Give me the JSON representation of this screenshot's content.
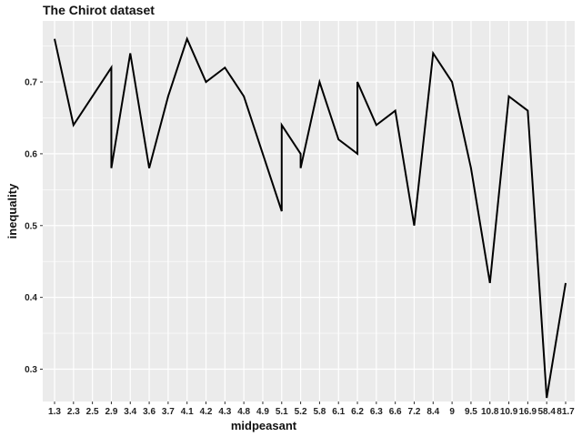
{
  "chart_data": {
    "type": "line",
    "title": "The Chirot dataset",
    "xlabel": "midpeasant",
    "ylabel": "inequality",
    "ylim": [
      0.255,
      0.785
    ],
    "y_ticks": [
      "0.3",
      "0.4",
      "0.5",
      "0.6",
      "0.7"
    ],
    "categories": [
      "1.3",
      "2.3",
      "2.5",
      "2.9",
      "3.4",
      "3.6",
      "3.7",
      "4.1",
      "4.2",
      "4.3",
      "4.8",
      "4.9",
      "5.1",
      "5.2",
      "5.8",
      "6.1",
      "6.2",
      "6.3",
      "6.6",
      "7.2",
      "8.4",
      "9",
      "9.5",
      "10.8",
      "10.9",
      "16.9",
      "58.4",
      "81.7"
    ],
    "points": [
      {
        "x": "1.3",
        "y": 0.76
      },
      {
        "x": "2.3",
        "y": 0.64
      },
      {
        "x": "2.5",
        "y": 0.68
      },
      {
        "x": "2.9",
        "y": 0.72
      },
      {
        "x": "2.9",
        "y": 0.58
      },
      {
        "x": "3.4",
        "y": 0.74
      },
      {
        "x": "3.6",
        "y": 0.58
      },
      {
        "x": "3.7",
        "y": 0.68
      },
      {
        "x": "4.1",
        "y": 0.76
      },
      {
        "x": "4.2",
        "y": 0.7
      },
      {
        "x": "4.3",
        "y": 0.72
      },
      {
        "x": "4.8",
        "y": 0.68
      },
      {
        "x": "4.9",
        "y": 0.6
      },
      {
        "x": "5.1",
        "y": 0.52
      },
      {
        "x": "5.1",
        "y": 0.64
      },
      {
        "x": "5.2",
        "y": 0.6
      },
      {
        "x": "5.2",
        "y": 0.58
      },
      {
        "x": "5.8",
        "y": 0.7
      },
      {
        "x": "6.1",
        "y": 0.62
      },
      {
        "x": "6.2",
        "y": 0.6
      },
      {
        "x": "6.2",
        "y": 0.7
      },
      {
        "x": "6.3",
        "y": 0.64
      },
      {
        "x": "6.6",
        "y": 0.66
      },
      {
        "x": "7.2",
        "y": 0.5
      },
      {
        "x": "8.4",
        "y": 0.74
      },
      {
        "x": "9",
        "y": 0.7
      },
      {
        "x": "9.5",
        "y": 0.58
      },
      {
        "x": "10.8",
        "y": 0.42
      },
      {
        "x": "10.9",
        "y": 0.68
      },
      {
        "x": "16.9",
        "y": 0.66
      },
      {
        "x": "58.4",
        "y": 0.26
      },
      {
        "x": "81.7",
        "y": 0.42
      }
    ],
    "style": {
      "panel_color": "#EBEBEB",
      "grid_color": "#FFFFFF",
      "line_color": "#000000",
      "grid": true,
      "legend": "none"
    }
  }
}
